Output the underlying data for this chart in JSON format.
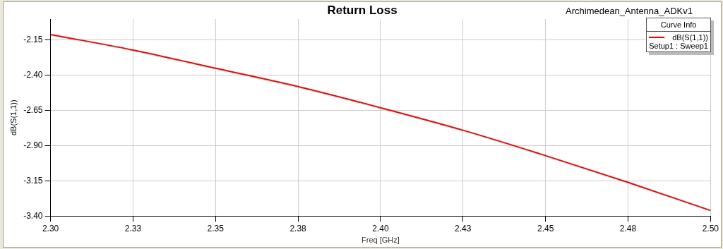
{
  "chart_data": {
    "type": "line",
    "title": "Return Loss",
    "subtitle": "Archimedean_Antenna_ADKv1",
    "xlabel": "Freq [GHz]",
    "ylabel": "dB(S(1,1))",
    "legend_title": "Curve Info",
    "legend": "top right",
    "grid": true,
    "marker": "none",
    "line_style": "solid",
    "x": [
      2.3,
      2.325,
      2.35,
      2.375,
      2.4,
      2.425,
      2.45,
      2.475,
      2.5
    ],
    "series": [
      {
        "name": "dB(S(1,1))",
        "color": "#ff0000",
        "values": [
          -2.11,
          -2.22,
          -2.35,
          -2.48,
          -2.63,
          -2.79,
          -2.97,
          -3.16,
          -3.36
        ]
      }
    ],
    "xlim": [
      2.3,
      2.5
    ],
    "xticks": [
      {
        "value": 2.3,
        "label": "2.30"
      },
      {
        "value": 2.325,
        "label": "2.33"
      },
      {
        "value": 2.35,
        "label": "2.35"
      },
      {
        "value": 2.375,
        "label": "2.38"
      },
      {
        "value": 2.4,
        "label": "2.40"
      },
      {
        "value": 2.425,
        "label": "2.43"
      },
      {
        "value": 2.45,
        "label": "2.45"
      },
      {
        "value": 2.475,
        "label": "2.48"
      },
      {
        "value": 2.5,
        "label": "2.50"
      }
    ],
    "ylim": [
      -3.4,
      -2.0
    ],
    "yticks": [
      {
        "value": -2.15,
        "label": "-2.15"
      },
      {
        "value": -2.4,
        "label": "-2.40"
      },
      {
        "value": -2.65,
        "label": "-2.65"
      },
      {
        "value": -2.9,
        "label": "-2.90"
      },
      {
        "value": -3.15,
        "label": "-3.15"
      },
      {
        "value": -3.4,
        "label": "-3.40"
      }
    ],
    "annotations": [
      "Setup1 : Sweep1"
    ]
  }
}
